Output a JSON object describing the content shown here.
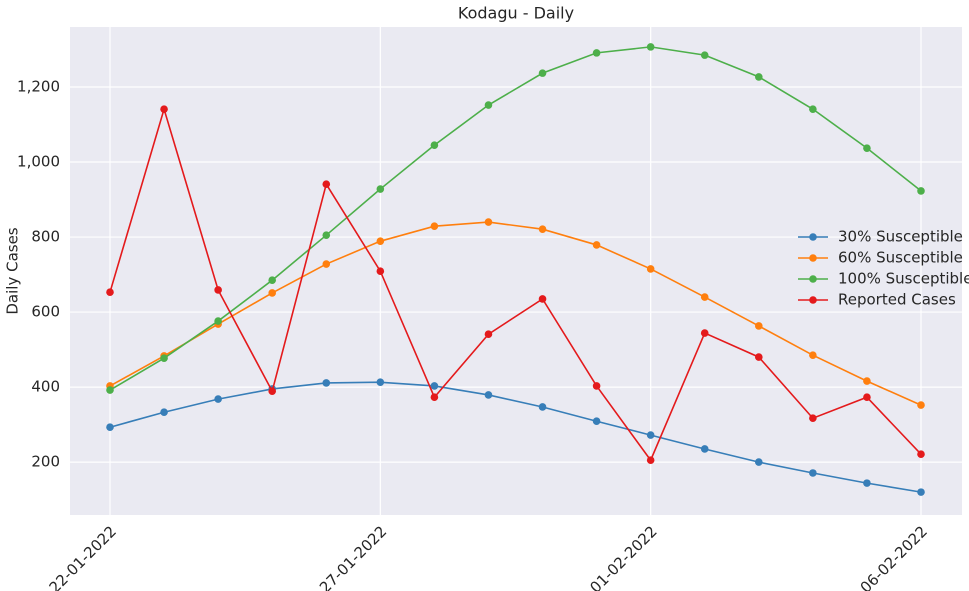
{
  "chart_data": {
    "type": "line",
    "title": "Kodagu - Daily",
    "y_label": "Daily Cases",
    "categories": [
      "22-01-2022",
      null,
      null,
      null,
      null,
      "27-01-2022",
      null,
      null,
      null,
      null,
      "01-02-2022",
      null,
      null,
      null,
      null,
      "06-02-2022"
    ],
    "series": [
      {
        "name": "30% Susceptible",
        "color": "#377eb8",
        "values": [
          293,
          333,
          368,
          395,
          411,
          413,
          403,
          379,
          347,
          309,
          272,
          235,
          200,
          171,
          144,
          120
        ]
      },
      {
        "name": "60% Susceptible",
        "color": "#ff7f0e",
        "values": [
          403,
          483,
          568,
          651,
          728,
          789,
          829,
          840,
          821,
          779,
          715,
          640,
          563,
          485,
          416,
          352
        ]
      },
      {
        "name": "100% Susceptible",
        "color": "#4daf4a",
        "values": [
          392,
          477,
          576,
          685,
          805,
          928,
          1045,
          1152,
          1237,
          1291,
          1307,
          1285,
          1227,
          1141,
          1037,
          923
        ]
      },
      {
        "name": "Reported Cases",
        "color": "#e41a1c",
        "values": [
          653,
          1141,
          659,
          389,
          941,
          709,
          373,
          541,
          635,
          403,
          205,
          544,
          480,
          317,
          373,
          221
        ]
      }
    ],
    "ylim": [
      59,
      1360
    ],
    "yticks": [
      200,
      400,
      600,
      800,
      {
        "value": 1000,
        "label": "1,000"
      },
      {
        "value": 1200,
        "label": "1,200"
      }
    ],
    "grid": true,
    "legend": "center right"
  }
}
